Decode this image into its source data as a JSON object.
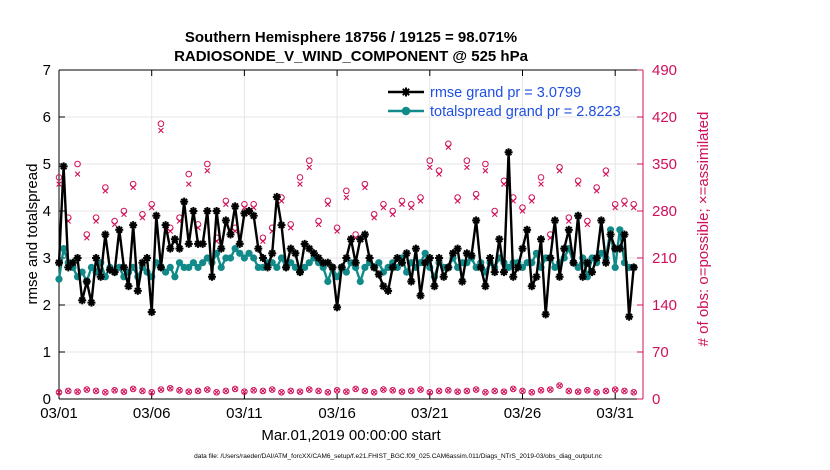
{
  "chart_data": {
    "type": "line",
    "title": "Southern Hemisphere 18756 / 19125 = 98.071%",
    "subtitle": "RADIOSONDE_V_WIND_COMPONENT @ 525 hPa",
    "xlabel": "Mar.01,2019 00:00:00 start",
    "ylabel": "rmse and totalspread",
    "y2label": "# of obs: o=possible; ×=assimilated",
    "footer": "data file: /Users/raeder/DAI/ATM_forcXX/CAM6_setup/f.e21.FHIST_BGC.f09_025.CAM6assim.011/Diags_NTrS_2019-03/obs_diag_output.nc",
    "xlim": [
      0,
      31.5
    ],
    "ylim": [
      0,
      7
    ],
    "y2lim": [
      0,
      490
    ],
    "xticks": [
      0,
      5,
      10,
      15,
      20,
      25,
      30
    ],
    "xtick_labels": [
      "03/01",
      "03/06",
      "03/11",
      "03/16",
      "03/21",
      "03/26",
      "03/31"
    ],
    "yticks": [
      0,
      1,
      2,
      3,
      4,
      5,
      6,
      7
    ],
    "ytick_labels": [
      "0",
      "1",
      "2",
      "3",
      "4",
      "5",
      "6",
      "7"
    ],
    "y2ticks": [
      0,
      70,
      140,
      210,
      280,
      350,
      420,
      490
    ],
    "y2tick_labels": [
      "0",
      "70",
      "140",
      "210",
      "280",
      "350",
      "420",
      "490"
    ],
    "grid": true,
    "legend_position": "top-right",
    "legend": [
      "rmse grand pr = 3.0799",
      "totalspread grand pr = 2.8223"
    ],
    "colors": {
      "rmse": "#000000",
      "spread": "#138a8a",
      "obs": "#d0105a",
      "legend_text": "#1f4fe0"
    },
    "series": [
      {
        "name": "rmse grand pr = 3.0799",
        "x": [
          0,
          0.25,
          0.5,
          0.75,
          1,
          1.25,
          1.5,
          1.75,
          2,
          2.25,
          2.5,
          2.75,
          3,
          3.25,
          3.5,
          3.75,
          4,
          4.25,
          4.5,
          4.75,
          5,
          5.25,
          5.5,
          5.75,
          6,
          6.25,
          6.5,
          6.75,
          7,
          7.25,
          7.5,
          7.75,
          8,
          8.25,
          8.5,
          8.75,
          9,
          9.25,
          9.5,
          9.75,
          10,
          10.25,
          10.5,
          10.75,
          11,
          11.25,
          11.5,
          11.75,
          12,
          12.25,
          12.5,
          12.75,
          13,
          13.25,
          13.5,
          13.75,
          14,
          14.25,
          14.5,
          14.75,
          15,
          15.25,
          15.5,
          15.75,
          16,
          16.25,
          16.5,
          16.75,
          17,
          17.25,
          17.5,
          17.75,
          18,
          18.25,
          18.5,
          18.75,
          19,
          19.25,
          19.5,
          19.75,
          20,
          20.25,
          20.5,
          20.75,
          21,
          21.25,
          21.5,
          21.75,
          22,
          22.25,
          22.5,
          22.75,
          23,
          23.25,
          23.5,
          23.75,
          24,
          24.25,
          24.5,
          24.75,
          25,
          25.25,
          25.5,
          25.75,
          26,
          26.25,
          26.5,
          26.75,
          27,
          27.25,
          27.5,
          27.75,
          28,
          28.25,
          28.5,
          28.75,
          29,
          29.25,
          29.5,
          29.75,
          30,
          30.25,
          30.5,
          30.75,
          31
        ],
        "values": [
          2.9,
          4.95,
          2.8,
          2.9,
          3.0,
          2.1,
          2.5,
          2.05,
          3.0,
          2.6,
          3.5,
          2.75,
          2.7,
          3.6,
          2.8,
          2.4,
          3.7,
          2.3,
          2.9,
          3.0,
          1.85,
          3.9,
          2.8,
          3.7,
          3.2,
          3.4,
          3.2,
          4.2,
          3.3,
          4.0,
          3.3,
          3.3,
          4.0,
          2.6,
          4.0,
          3.2,
          3.8,
          3.5,
          4.1,
          3.3,
          3.95,
          4.0,
          3.9,
          3.2,
          3.0,
          2.8,
          3.1,
          4.3,
          3.7,
          2.8,
          3.2,
          3.1,
          2.7,
          3.3,
          3.2,
          3.1,
          3.0,
          2.9,
          2.9,
          2.8,
          1.95,
          2.8,
          3.0,
          3.4,
          2.9,
          3.4,
          3.5,
          3.0,
          2.8,
          2.65,
          2.4,
          2.3,
          2.8,
          3.0,
          2.9,
          3.1,
          2.5,
          3.2,
          2.2,
          2.9,
          3.0,
          2.4,
          3.0,
          2.6,
          2.8,
          3.1,
          3.2,
          2.5,
          3.1,
          3.05,
          3.8,
          2.8,
          2.4,
          3.0,
          2.7,
          3.4,
          2.7,
          5.25,
          2.6,
          2.8,
          3.2,
          3.6,
          2.4,
          2.6,
          3.4,
          1.8,
          3.0,
          3.8,
          2.6,
          3.2,
          3.6,
          2.9,
          3.9,
          2.6,
          2.9,
          2.7,
          3.0,
          3.8,
          2.9,
          3.5,
          3.2,
          3.2,
          3.5,
          1.75,
          2.8
        ],
        "color": "#000000"
      },
      {
        "name": "totalspread grand pr = 2.8223",
        "x": [
          0,
          0.25,
          0.5,
          0.75,
          1,
          1.25,
          1.5,
          1.75,
          2,
          2.25,
          2.5,
          2.75,
          3,
          3.25,
          3.5,
          3.75,
          4,
          4.25,
          4.5,
          4.75,
          5,
          5.25,
          5.5,
          5.75,
          6,
          6.25,
          6.5,
          6.75,
          7,
          7.25,
          7.5,
          7.75,
          8,
          8.25,
          8.5,
          8.75,
          9,
          9.25,
          9.5,
          9.75,
          10,
          10.25,
          10.5,
          10.75,
          11,
          11.25,
          11.5,
          11.75,
          12,
          12.25,
          12.5,
          12.75,
          13,
          13.25,
          13.5,
          13.75,
          14,
          14.25,
          14.5,
          14.75,
          15,
          15.25,
          15.5,
          15.75,
          16,
          16.25,
          16.5,
          16.75,
          17,
          17.25,
          17.5,
          17.75,
          18,
          18.25,
          18.5,
          18.75,
          19,
          19.25,
          19.5,
          19.75,
          20,
          20.25,
          20.5,
          20.75,
          21,
          21.25,
          21.5,
          21.75,
          22,
          22.25,
          22.5,
          22.75,
          23,
          23.25,
          23.5,
          23.75,
          24,
          24.25,
          24.5,
          24.75,
          25,
          25.25,
          25.5,
          25.75,
          26,
          26.25,
          26.5,
          26.75,
          27,
          27.25,
          27.5,
          27.75,
          28,
          28.25,
          28.5,
          28.75,
          29,
          29.25,
          29.5,
          29.75,
          30,
          30.25,
          30.5,
          30.75,
          31
        ],
        "values": [
          2.55,
          3.2,
          2.9,
          2.8,
          2.6,
          2.7,
          2.5,
          2.8,
          2.7,
          2.9,
          2.6,
          2.8,
          2.7,
          2.8,
          2.6,
          2.7,
          2.8,
          2.6,
          2.8,
          2.7,
          2.6,
          2.9,
          2.8,
          2.7,
          2.8,
          2.6,
          2.9,
          2.8,
          2.8,
          2.9,
          2.8,
          2.9,
          3.0,
          2.9,
          3.1,
          2.8,
          3.0,
          3.0,
          3.2,
          3.1,
          3.0,
          3.1,
          3.0,
          2.8,
          2.8,
          2.9,
          2.9,
          2.8,
          3.0,
          2.8,
          2.9,
          2.8,
          2.7,
          2.8,
          2.9,
          3.0,
          2.9,
          2.8,
          2.5,
          2.8,
          2.6,
          2.8,
          2.7,
          2.9,
          2.8,
          2.5,
          2.8,
          2.9,
          2.8,
          2.9,
          2.7,
          2.8,
          2.9,
          2.8,
          3.0,
          2.7,
          2.9,
          2.8,
          2.9,
          3.1,
          2.8,
          2.6,
          2.9,
          2.8,
          2.8,
          3.0,
          2.8,
          2.9,
          2.9,
          3.0,
          2.8,
          2.9,
          2.7,
          2.9,
          2.8,
          3.0,
          2.9,
          2.8,
          2.9,
          2.9,
          2.8,
          2.9,
          2.9,
          3.1,
          2.8,
          3.0,
          3.0,
          2.8,
          2.9,
          3.0,
          3.2,
          2.9,
          2.8,
          3.0,
          2.6,
          3.0,
          2.9,
          3.1,
          3.0,
          3.6,
          2.8,
          3.6,
          2.9,
          2.8,
          2.8
        ],
        "color": "#138a8a"
      },
      {
        "name": "obs possible (o)",
        "axis": "right",
        "x": [
          0,
          0.5,
          1,
          1.5,
          2,
          2.5,
          3,
          3.5,
          4,
          4.5,
          5,
          5.5,
          6,
          6.5,
          7,
          7.5,
          8,
          8.5,
          9,
          9.5,
          10,
          10.5,
          11,
          11.5,
          12,
          12.5,
          13,
          13.5,
          14,
          14.5,
          15,
          15.5,
          16,
          16.5,
          17,
          17.5,
          18,
          18.5,
          19,
          19.5,
          20,
          20.5,
          21,
          21.5,
          22,
          22.5,
          23,
          23.5,
          24,
          24.5,
          25,
          25.5,
          26,
          26.5,
          27,
          27.5,
          28,
          28.5,
          29,
          29.5,
          30,
          30.5,
          31
        ],
        "values": [
          330,
          270,
          350,
          245,
          270,
          315,
          265,
          280,
          320,
          275,
          290,
          410,
          255,
          270,
          335,
          260,
          350,
          240,
          295,
          255,
          290,
          290,
          240,
          255,
          300,
          260,
          330,
          355,
          265,
          295,
          255,
          310,
          245,
          320,
          275,
          290,
          280,
          295,
          290,
          300,
          355,
          340,
          380,
          300,
          355,
          305,
          350,
          280,
          325,
          300,
          285,
          300,
          330,
          245,
          345,
          270,
          325,
          265,
          315,
          340,
          290,
          295,
          290
        ],
        "color": "#d0105a"
      },
      {
        "name": "obs assimilated (×)",
        "axis": "right",
        "x": [
          0,
          0.5,
          1,
          1.5,
          2,
          2.5,
          3,
          3.5,
          4,
          4.5,
          5,
          5.5,
          6,
          6.5,
          7,
          7.5,
          8,
          8.5,
          9,
          9.5,
          10,
          10.5,
          11,
          11.5,
          12,
          12.5,
          13,
          13.5,
          14,
          14.5,
          15,
          15.5,
          16,
          16.5,
          17,
          17.5,
          18,
          18.5,
          19,
          19.5,
          20,
          20.5,
          21,
          21.5,
          22,
          22.5,
          23,
          23.5,
          24,
          24.5,
          25,
          25.5,
          26,
          26.5,
          27,
          27.5,
          28,
          28.5,
          29,
          29.5,
          30,
          30.5,
          31
        ],
        "values": [
          320,
          265,
          335,
          240,
          265,
          310,
          260,
          275,
          315,
          270,
          285,
          400,
          250,
          265,
          320,
          255,
          340,
          235,
          290,
          250,
          285,
          285,
          235,
          250,
          295,
          255,
          320,
          345,
          260,
          290,
          250,
          300,
          240,
          315,
          270,
          285,
          275,
          290,
          285,
          295,
          345,
          335,
          375,
          295,
          345,
          300,
          340,
          275,
          320,
          295,
          280,
          295,
          320,
          240,
          340,
          265,
          320,
          260,
          310,
          335,
          285,
          290,
          285
        ],
        "color": "#d0105a"
      },
      {
        "name": "obs near zero (o/×)",
        "axis": "right",
        "x": [
          0,
          0.5,
          1,
          1.5,
          2,
          2.5,
          3,
          3.5,
          4,
          4.5,
          5,
          5.5,
          6,
          6.5,
          7,
          7.5,
          8,
          8.5,
          9,
          9.5,
          10,
          10.5,
          11,
          11.5,
          12,
          12.5,
          13,
          13.5,
          14,
          14.5,
          15,
          15.5,
          16,
          16.5,
          17,
          17.5,
          18,
          18.5,
          19,
          19.5,
          20,
          20.5,
          21,
          21.5,
          22,
          22.5,
          23,
          23.5,
          24,
          24.5,
          25,
          25.5,
          26,
          26.5,
          27,
          27.5,
          28,
          28.5,
          29,
          29.5,
          30,
          30.5,
          31
        ],
        "values": [
          10,
          12,
          11,
          14,
          12,
          10,
          13,
          11,
          15,
          12,
          10,
          14,
          16,
          13,
          11,
          12,
          14,
          10,
          12,
          15,
          11,
          13,
          12,
          14,
          10,
          12,
          11,
          14,
          12,
          10,
          13,
          11,
          15,
          12,
          10,
          14,
          13,
          11,
          12,
          14,
          10,
          12,
          13,
          11,
          12,
          14,
          10,
          12,
          11,
          15,
          12,
          10,
          13,
          14,
          20,
          12,
          11,
          13,
          10,
          12,
          14,
          12,
          10
        ],
        "color": "#d0105a"
      }
    ]
  }
}
